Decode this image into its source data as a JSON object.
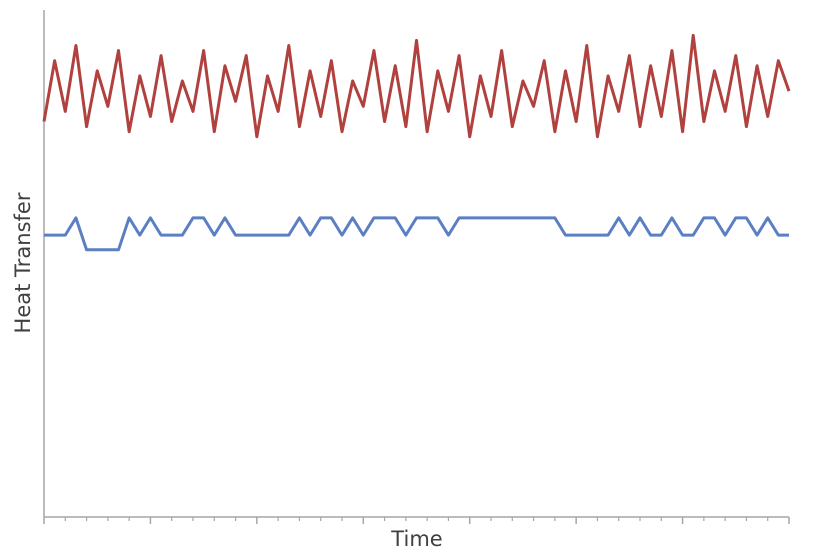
{
  "chart_data": {
    "type": "line",
    "x_label": "Time",
    "y_label": "Heat Transfer",
    "x": [
      0,
      0.5,
      1,
      1.5,
      2,
      2.5,
      3,
      3.5,
      4,
      4.5,
      5,
      5.5,
      6,
      6.5,
      7,
      7.5,
      8,
      8.5,
      9,
      9.5,
      10,
      10.5,
      11,
      11.5,
      12,
      12.5,
      13,
      13.5,
      14,
      14.5,
      15,
      15.5,
      16,
      16.5,
      17,
      17.5,
      18,
      18.5,
      19,
      19.5,
      20,
      20.5,
      21,
      21.5,
      22,
      22.5,
      23,
      23.5,
      24,
      24.5,
      25,
      25.5,
      26,
      26.5,
      27,
      27.5,
      28,
      28.5,
      29,
      29.5,
      30,
      30.5,
      31,
      31.5,
      32,
      32.5,
      33,
      33.5,
      34,
      34.5,
      35
    ],
    "series": [
      {
        "color": "#b0413e",
        "values": [
          78,
          90,
          80,
          93,
          77,
          88,
          81,
          92,
          76,
          87,
          79,
          91,
          78,
          86,
          80,
          92,
          76,
          89,
          82,
          91,
          75,
          87,
          80,
          93,
          77,
          88,
          79,
          90,
          76,
          86,
          81,
          92,
          78,
          89,
          77,
          94,
          76,
          88,
          80,
          91,
          75,
          87,
          79,
          92,
          77,
          86,
          81,
          90,
          76,
          88,
          78,
          93,
          75,
          87,
          80,
          91,
          77,
          89,
          79,
          92,
          76,
          95,
          78,
          88,
          80,
          91,
          77,
          89,
          79,
          90,
          84
        ]
      },
      {
        "color": "#5b7fc2",
        "values": [
          55.6,
          55.6,
          55.6,
          59,
          52.7,
          52.7,
          52.7,
          52.7,
          59,
          55.6,
          59,
          55.6,
          55.6,
          55.6,
          59,
          59,
          55.6,
          59,
          55.6,
          55.6,
          55.6,
          55.6,
          55.6,
          55.6,
          59,
          55.6,
          59,
          59,
          55.6,
          59,
          55.6,
          59,
          59,
          59,
          55.6,
          59,
          59,
          59,
          55.6,
          59,
          59,
          59,
          59,
          59,
          59,
          59,
          59,
          59,
          59,
          55.6,
          55.6,
          55.6,
          55.6,
          55.6,
          59,
          55.6,
          59,
          55.6,
          55.6,
          59,
          55.6,
          55.6,
          59,
          59,
          55.6,
          59,
          59,
          55.6,
          59,
          55.6,
          55.6
        ]
      }
    ],
    "xlim": [
      0,
      35
    ],
    "ylim": [
      0,
      100
    ],
    "xticks": [
      0,
      5,
      10,
      15,
      20,
      25,
      30,
      35
    ],
    "minor_xticks": [
      1,
      2,
      3,
      4,
      6,
      7,
      8,
      9,
      11,
      12,
      13,
      14,
      16,
      17,
      18,
      19,
      21,
      22,
      23,
      24,
      26,
      27,
      28,
      29,
      31,
      32,
      33,
      34
    ]
  }
}
